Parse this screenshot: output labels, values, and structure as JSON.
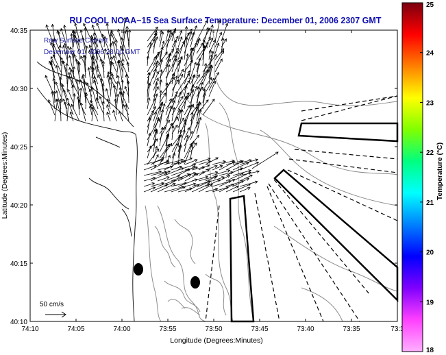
{
  "title": "RU COOL  NOAA−15  Sea Surface Temperature:  December 01, 2006 2307 GMT",
  "overlay": {
    "line1": "Raw Surface Current",
    "line2": "December 01, 2006 23:00 GMT"
  },
  "axes": {
    "xlabel": "Longitude (Degrees:Minutes)",
    "ylabel": "Latitude (Degrees:Minutes)",
    "xticks": [
      "74:10",
      "74:05",
      "74:00",
      "73:55",
      "73:50",
      "73:45",
      "73:40",
      "73:35",
      "73:3"
    ],
    "yticks": [
      "40:35",
      "40:30",
      "40:25",
      "40:20",
      "40:15",
      "40:10"
    ]
  },
  "scale_label": "50 cm/s",
  "colorbar": {
    "label": "Temperature (°C)",
    "ticks": [
      "25",
      "24",
      "23",
      "22",
      "21",
      "20",
      "19",
      "18"
    ],
    "colors": [
      "#7a0010",
      "#ff0000",
      "#ff8000",
      "#ffff00",
      "#80ff00",
      "#00ff80",
      "#00ffff",
      "#0080ff",
      "#0000ff",
      "#8000ff",
      "#ff40ff",
      "#ffb0ff"
    ]
  }
}
